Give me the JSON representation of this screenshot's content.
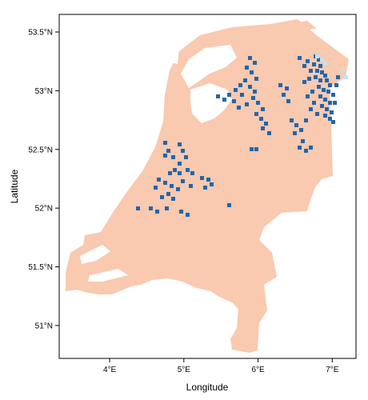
{
  "map": {
    "xlabel": "Longitude",
    "ylabel": "Latitude",
    "x_ticks": [
      {
        "value": 4,
        "label": "4°E"
      },
      {
        "value": 5,
        "label": "5°E"
      },
      {
        "value": 6,
        "label": "6°E"
      },
      {
        "value": 7,
        "label": "7°E"
      }
    ],
    "y_ticks": [
      {
        "value": 51.0,
        "label": "51°N"
      },
      {
        "value": 51.5,
        "label": "51.5°N"
      },
      {
        "value": 52.0,
        "label": "52°N"
      },
      {
        "value": 52.5,
        "label": "52.5°N"
      },
      {
        "value": 53.0,
        "label": "53°N"
      },
      {
        "value": 53.5,
        "label": "53.5°N"
      }
    ],
    "xlim": [
      3.32,
      7.32
    ],
    "ylim": [
      50.72,
      53.65
    ],
    "colors": {
      "land": "#f9c9b0",
      "high_category": "#2166ac",
      "light_category": "#c6e1f0",
      "axis": "#000000",
      "background": "#ffffff"
    },
    "legend": "none",
    "grid": false
  }
}
